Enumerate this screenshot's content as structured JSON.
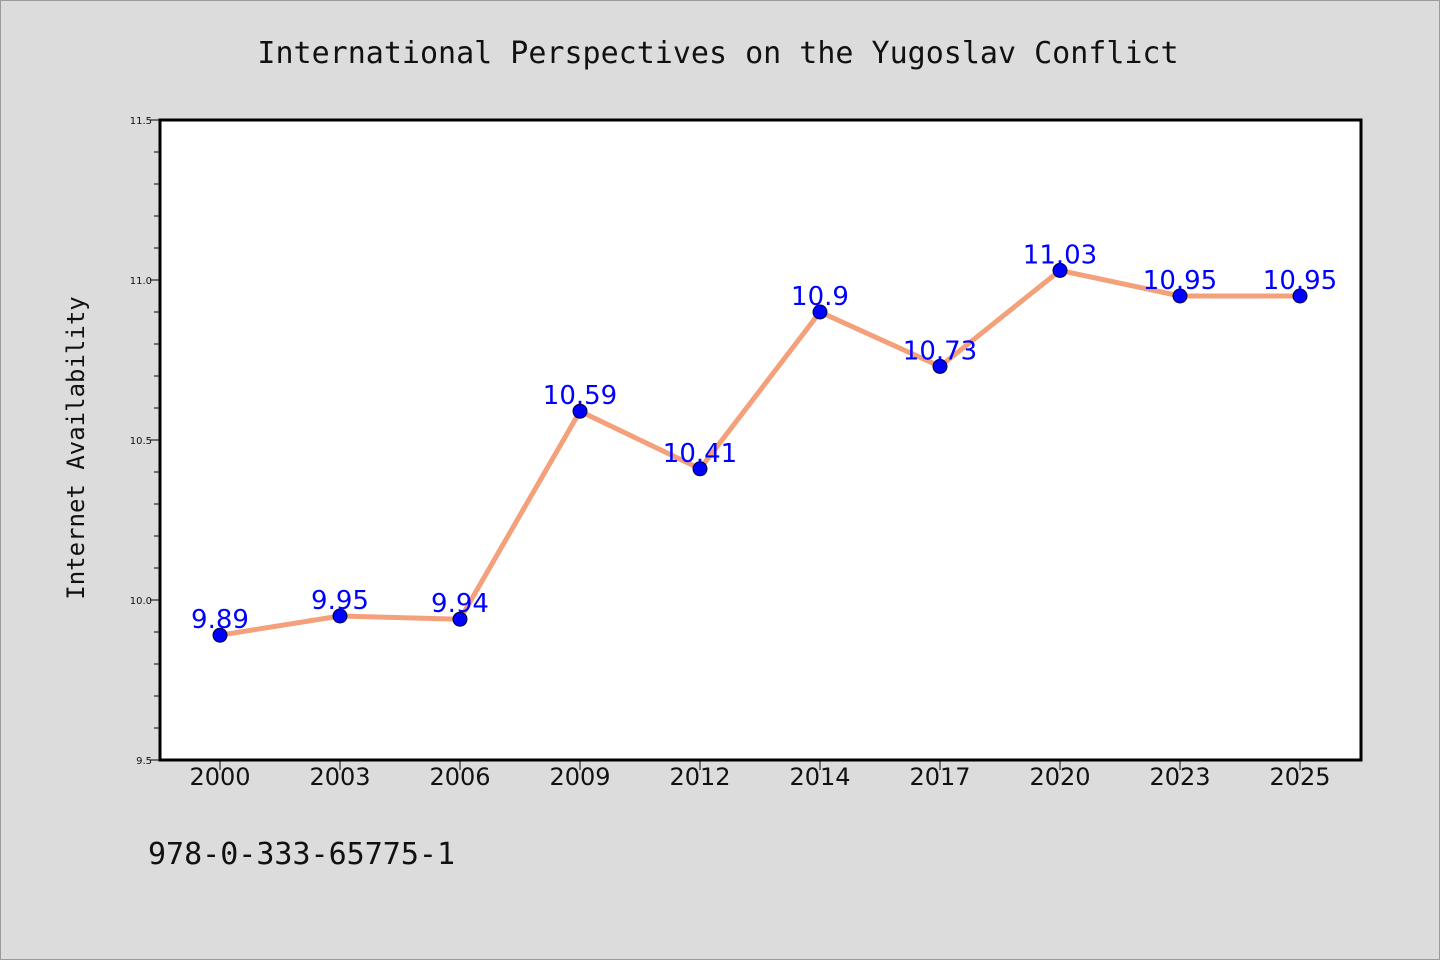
{
  "chart_data": {
    "type": "line",
    "title": "International Perspectives on the Yugoslav Conflict",
    "xlabel": "",
    "ylabel": "Internet Availability",
    "categories": [
      "2000",
      "2003",
      "2006",
      "2009",
      "2012",
      "2014",
      "2017",
      "2020",
      "2023",
      "2025"
    ],
    "series": [
      {
        "values": [
          9.89,
          9.95,
          9.94,
          10.59,
          10.41,
          10.9,
          10.73,
          11.03,
          10.95,
          10.95
        ],
        "labels": [
          "9.89",
          "9.95",
          "9.94",
          "10.59",
          "10.41",
          "10.9",
          "10.73",
          "11.03",
          "10.95",
          "10.95"
        ],
        "line_color": "#f4a07a",
        "marker_color": "#0000ff"
      }
    ],
    "ylim": [
      9.5,
      11.5
    ],
    "yticks": [
      "9.5",
      "10.0",
      "10.5",
      "11.0",
      "11.5"
    ],
    "grid": false,
    "legend": "none"
  },
  "footer": {
    "text": "978-0-333-65775-1"
  },
  "colors": {
    "background": "#dcdcdc",
    "plot_background": "#ffffff",
    "label_color": "#0000ff"
  }
}
